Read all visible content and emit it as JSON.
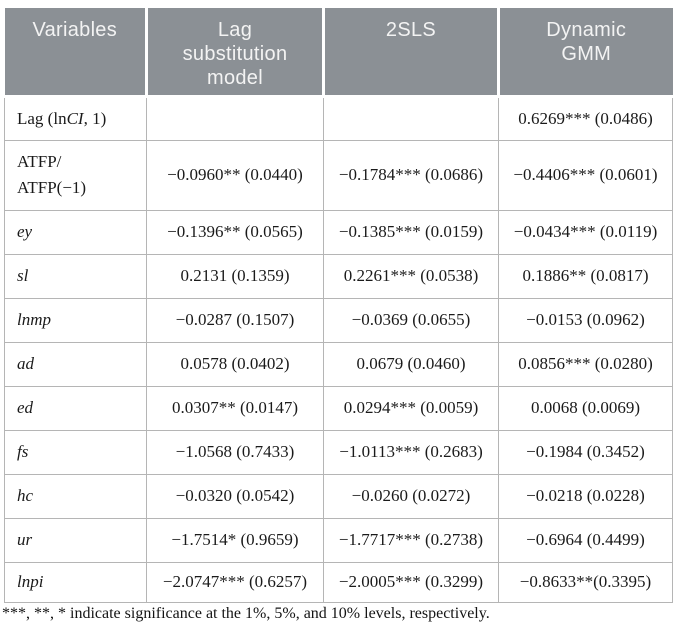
{
  "colors": {
    "header_bg": "#8b9095",
    "header_text": "#f3f3f3",
    "border": "#b5b5b5",
    "body_text": "#1a1a1a"
  },
  "table": {
    "columns": [
      {
        "id": "variables",
        "lines": [
          "Variables"
        ]
      },
      {
        "id": "lag-substitution-model",
        "lines": [
          "Lag",
          "substitution",
          "model"
        ]
      },
      {
        "id": "2sls",
        "lines": [
          "2SLS"
        ]
      },
      {
        "id": "dynamic-gmm",
        "lines": [
          "Dynamic",
          "GMM"
        ]
      }
    ],
    "rows": [
      {
        "id": "lag-lnci-1",
        "label_parts": [
          {
            "t": "Lag (ln"
          },
          {
            "t": "CI",
            "italic": true
          },
          {
            "t": ", 1)"
          }
        ],
        "cells": [
          "",
          "",
          "0.6269*** (0.0486)"
        ]
      },
      {
        "id": "atfp",
        "label_lines": [
          "ATFP/",
          "ATFP(−1)"
        ],
        "cells": [
          "−0.0960** (0.0440)",
          "−0.1784*** (0.0686)",
          "−0.4406*** (0.0601)"
        ]
      },
      {
        "id": "ey",
        "label": "ey",
        "italic": true,
        "cells": [
          "−0.1396** (0.0565)",
          "−0.1385*** (0.0159)",
          "−0.0434*** (0.0119)"
        ]
      },
      {
        "id": "sl",
        "label": "sl",
        "italic": true,
        "cells": [
          "0.2131 (0.1359)",
          "0.2261*** (0.0538)",
          "0.1886** (0.0817)"
        ]
      },
      {
        "id": "lnmp",
        "label": "lnmp",
        "italic": true,
        "cells": [
          "−0.0287 (0.1507)",
          "−0.0369 (0.0655)",
          "−0.0153 (0.0962)"
        ]
      },
      {
        "id": "ad",
        "label": "ad",
        "italic": true,
        "cells": [
          "0.0578 (0.0402)",
          "0.0679 (0.0460)",
          "0.0856*** (0.0280)"
        ]
      },
      {
        "id": "ed",
        "label": "ed",
        "italic": true,
        "cells": [
          "0.0307** (0.0147)",
          "0.0294*** (0.0059)",
          "0.0068 (0.0069)"
        ]
      },
      {
        "id": "fs",
        "label": "fs",
        "italic": true,
        "cells": [
          "−1.0568 (0.7433)",
          "−1.0113*** (0.2683)",
          "−0.1984 (0.3452)"
        ]
      },
      {
        "id": "hc",
        "label": "hc",
        "italic": true,
        "cells": [
          "−0.0320 (0.0542)",
          "−0.0260 (0.0272)",
          "−0.0218 (0.0228)"
        ]
      },
      {
        "id": "ur",
        "label": "ur",
        "italic": true,
        "cells": [
          "−1.7514* (0.9659)",
          "−1.7717*** (0.2738)",
          "−0.6964 (0.4499)"
        ]
      },
      {
        "id": "lnpi",
        "label": "lnpi",
        "italic": true,
        "last": true,
        "cells": [
          "−2.0747*** (0.6257)",
          "−2.0005*** (0.3299)",
          "−0.8633**(0.3395)"
        ]
      }
    ]
  },
  "footnote": "***, **, * indicate significance at the 1%, 5%, and 10% levels, respectively."
}
